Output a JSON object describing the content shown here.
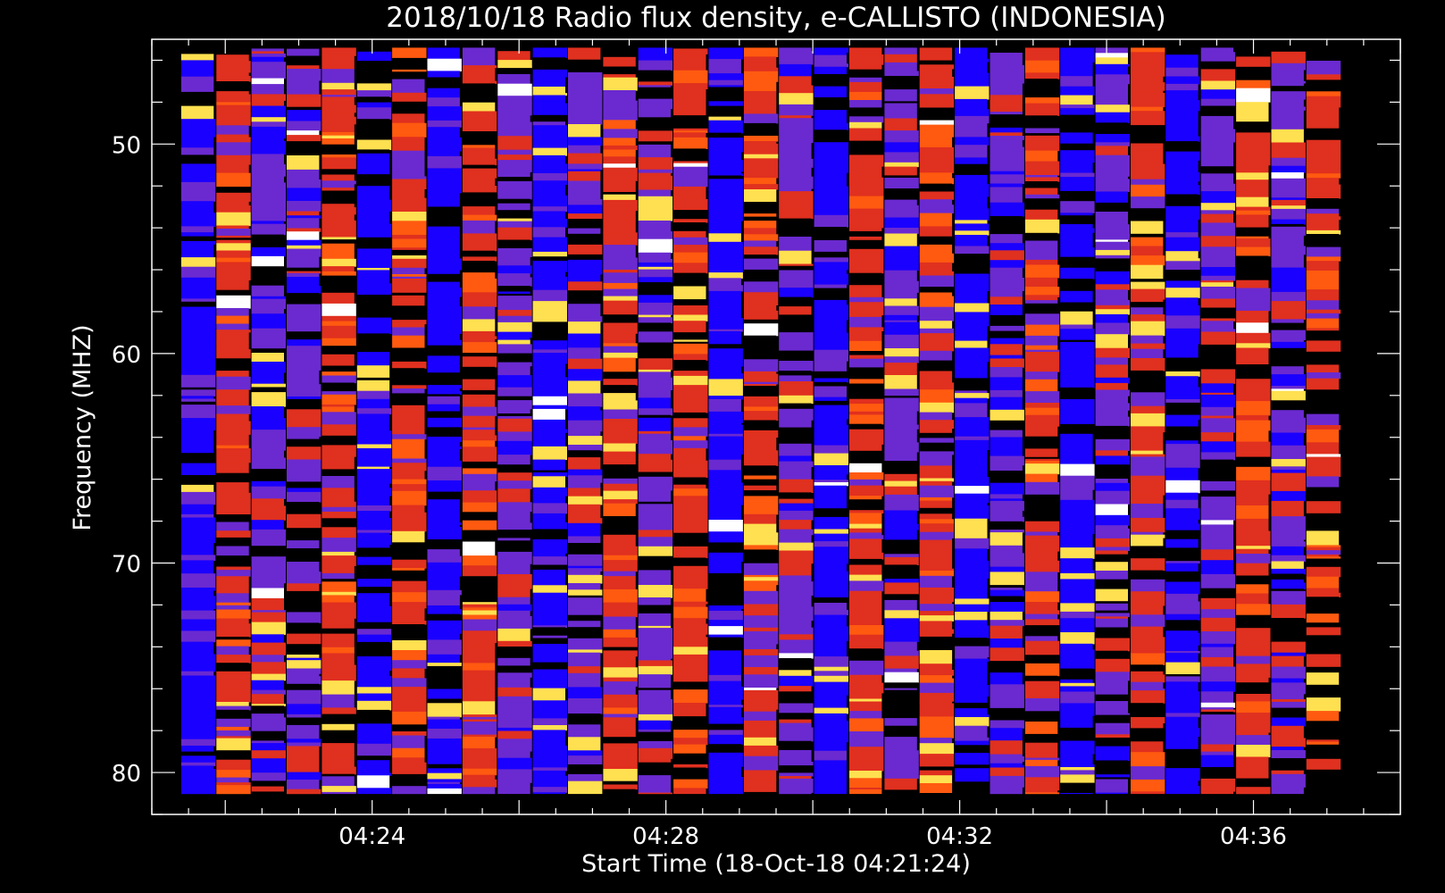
{
  "chart_data": {
    "type": "heatmap",
    "title": "2018/10/18  Radio flux density, e-CALLISTO (INDONESIA)",
    "xlabel": "Start Time (18-Oct-18 04:21:24)",
    "ylabel": "Frequency (MHZ)",
    "x_axis": {
      "unit": "time",
      "range": [
        "04:21:00",
        "04:38:00"
      ],
      "data_range": [
        "04:21:24",
        "04:37:12"
      ],
      "tick_labels": [
        "04:24",
        "04:28",
        "04:32",
        "04:36"
      ]
    },
    "y_axis": {
      "unit": "MHz",
      "range": [
        45,
        82
      ],
      "data_range": [
        45.4,
        81.0
      ],
      "orientation": "increasing-downward",
      "tick_labels": [
        "50",
        "60",
        "70",
        "80"
      ]
    },
    "grid": false,
    "colormap": [
      "#000000",
      "#1a00ff",
      "#6a2ad0",
      "#e0301f",
      "#ff5a10",
      "#ffe050",
      "#ffffff"
    ],
    "colormap_name": "black-blue-purple-red-yellow-white",
    "background_color": "#000000",
    "axis_color": "#ffffff",
    "column_count": 33,
    "column_dominant_colors": [
      "blue",
      "red",
      "purple",
      "purple",
      "red",
      "blue",
      "red",
      "blue",
      "red",
      "purple",
      "blue",
      "purple",
      "red",
      "purple",
      "red",
      "blue",
      "red",
      "purple",
      "blue",
      "red",
      "purple",
      "red",
      "blue",
      "purple",
      "red",
      "blue",
      "purple",
      "red",
      "blue",
      "purple",
      "red",
      "purple",
      "red"
    ]
  }
}
